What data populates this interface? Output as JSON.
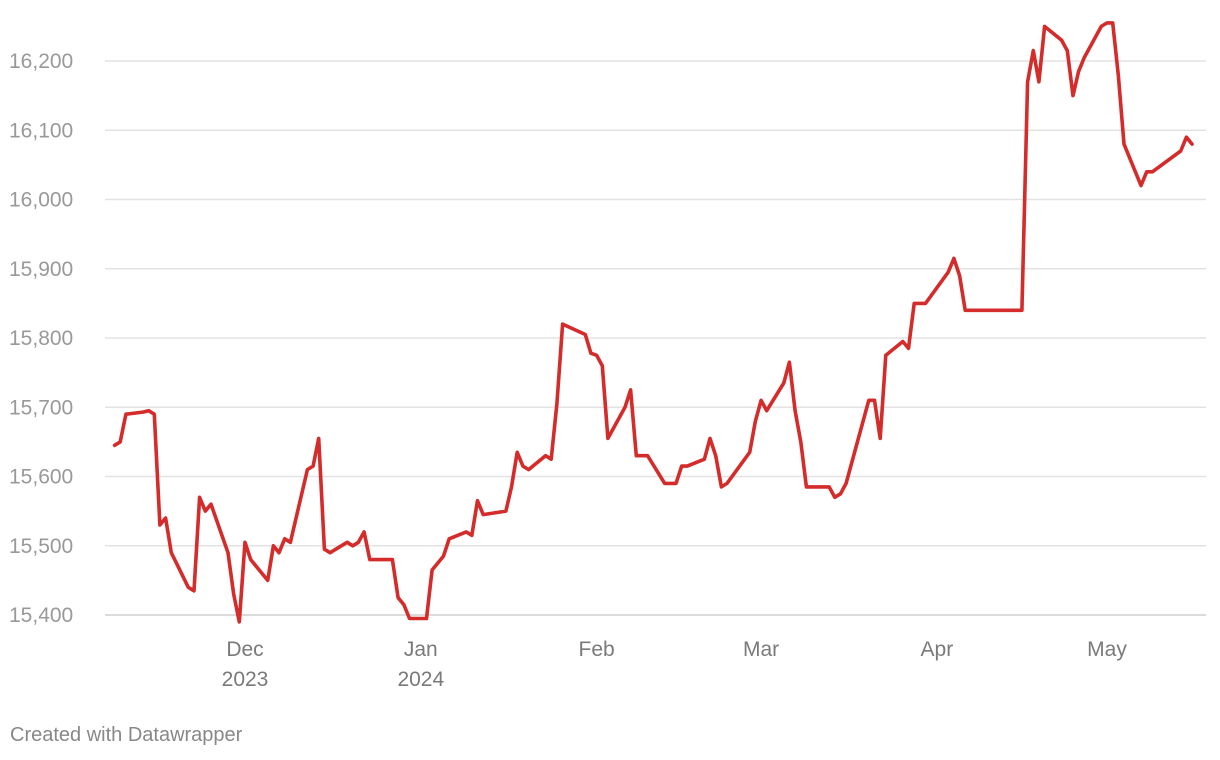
{
  "chart_data": {
    "type": "line",
    "x_range": [
      "2023-11-06",
      "2024-05-19"
    ],
    "ylim": [
      15400,
      16250
    ],
    "y_ticks": [
      {
        "value": 15400,
        "label": "15,400"
      },
      {
        "value": 15500,
        "label": "15,500"
      },
      {
        "value": 15600,
        "label": "15,600"
      },
      {
        "value": 15700,
        "label": "15,700"
      },
      {
        "value": 15800,
        "label": "15,800"
      },
      {
        "value": 15900,
        "label": "15,900"
      },
      {
        "value": 16000,
        "label": "16,000"
      },
      {
        "value": 16100,
        "label": "16,100"
      },
      {
        "value": 16200,
        "label": "16,200"
      }
    ],
    "x_ticks": [
      {
        "date": "2023-12-01",
        "label": "Dec",
        "sublabel": "2023"
      },
      {
        "date": "2024-01-01",
        "label": "Jan",
        "sublabel": "2024"
      },
      {
        "date": "2024-02-01",
        "label": "Feb",
        "sublabel": ""
      },
      {
        "date": "2024-03-01",
        "label": "Mar",
        "sublabel": ""
      },
      {
        "date": "2024-04-01",
        "label": "Apr",
        "sublabel": ""
      },
      {
        "date": "2024-05-01",
        "label": "May",
        "sublabel": ""
      }
    ],
    "grid": true,
    "series": [
      {
        "color": "#d42b2b",
        "points": [
          [
            "2023-11-08",
            15645
          ],
          [
            "2023-11-09",
            15650
          ],
          [
            "2023-11-10",
            15690
          ],
          [
            "2023-11-13",
            15693
          ],
          [
            "2023-11-14",
            15695
          ],
          [
            "2023-11-15",
            15690
          ],
          [
            "2023-11-16",
            15530
          ],
          [
            "2023-11-17",
            15540
          ],
          [
            "2023-11-18",
            15490
          ],
          [
            "2023-11-21",
            15440
          ],
          [
            "2023-11-22",
            15435
          ],
          [
            "2023-11-23",
            15570
          ],
          [
            "2023-11-24",
            15550
          ],
          [
            "2023-11-25",
            15560
          ],
          [
            "2023-11-28",
            15490
          ],
          [
            "2023-11-29",
            15430
          ],
          [
            "2023-11-30",
            15390
          ],
          [
            "2023-12-01",
            15505
          ],
          [
            "2023-12-02",
            15480
          ],
          [
            "2023-12-05",
            15450
          ],
          [
            "2023-12-06",
            15500
          ],
          [
            "2023-12-07",
            15490
          ],
          [
            "2023-12-08",
            15510
          ],
          [
            "2023-12-09",
            15505
          ],
          [
            "2023-12-12",
            15610
          ],
          [
            "2023-12-13",
            15615
          ],
          [
            "2023-12-14",
            15655
          ],
          [
            "2023-12-15",
            15495
          ],
          [
            "2023-12-16",
            15490
          ],
          [
            "2023-12-19",
            15505
          ],
          [
            "2023-12-20",
            15500
          ],
          [
            "2023-12-21",
            15505
          ],
          [
            "2023-12-22",
            15520
          ],
          [
            "2023-12-23",
            15480
          ],
          [
            "2023-12-27",
            15480
          ],
          [
            "2023-12-28",
            15425
          ],
          [
            "2023-12-29",
            15415
          ],
          [
            "2023-12-30",
            15395
          ],
          [
            "2024-01-02",
            15395
          ],
          [
            "2024-01-03",
            15465
          ],
          [
            "2024-01-05",
            15485
          ],
          [
            "2024-01-06",
            15510
          ],
          [
            "2024-01-09",
            15520
          ],
          [
            "2024-01-10",
            15515
          ],
          [
            "2024-01-11",
            15565
          ],
          [
            "2024-01-12",
            15545
          ],
          [
            "2024-01-16",
            15550
          ],
          [
            "2024-01-17",
            15585
          ],
          [
            "2024-01-18",
            15635
          ],
          [
            "2024-01-19",
            15615
          ],
          [
            "2024-01-20",
            15610
          ],
          [
            "2024-01-23",
            15630
          ],
          [
            "2024-01-24",
            15625
          ],
          [
            "2024-01-25",
            15705
          ],
          [
            "2024-01-26",
            15820
          ],
          [
            "2024-01-30",
            15805
          ],
          [
            "2024-01-31",
            15778
          ],
          [
            "2024-02-01",
            15775
          ],
          [
            "2024-02-02",
            15760
          ],
          [
            "2024-02-03",
            15655
          ],
          [
            "2024-02-06",
            15700
          ],
          [
            "2024-02-07",
            15725
          ],
          [
            "2024-02-08",
            15630
          ],
          [
            "2024-02-10",
            15630
          ],
          [
            "2024-02-13",
            15590
          ],
          [
            "2024-02-15",
            15590
          ],
          [
            "2024-02-16",
            15615
          ],
          [
            "2024-02-17",
            15615
          ],
          [
            "2024-02-20",
            15625
          ],
          [
            "2024-02-21",
            15655
          ],
          [
            "2024-02-22",
            15630
          ],
          [
            "2024-02-23",
            15585
          ],
          [
            "2024-02-24",
            15590
          ],
          [
            "2024-02-28",
            15635
          ],
          [
            "2024-02-29",
            15680
          ],
          [
            "2024-03-01",
            15710
          ],
          [
            "2024-03-02",
            15695
          ],
          [
            "2024-03-05",
            15735
          ],
          [
            "2024-03-06",
            15765
          ],
          [
            "2024-03-07",
            15695
          ],
          [
            "2024-03-08",
            15650
          ],
          [
            "2024-03-09",
            15585
          ],
          [
            "2024-03-13",
            15585
          ],
          [
            "2024-03-14",
            15570
          ],
          [
            "2024-03-15",
            15575
          ],
          [
            "2024-03-16",
            15590
          ],
          [
            "2024-03-19",
            15680
          ],
          [
            "2024-03-20",
            15710
          ],
          [
            "2024-03-21",
            15710
          ],
          [
            "2024-03-22",
            15655
          ],
          [
            "2024-03-23",
            15775
          ],
          [
            "2024-03-26",
            15795
          ],
          [
            "2024-03-27",
            15785
          ],
          [
            "2024-03-28",
            15850
          ],
          [
            "2024-03-30",
            15850
          ],
          [
            "2024-04-03",
            15895
          ],
          [
            "2024-04-04",
            15915
          ],
          [
            "2024-04-05",
            15890
          ],
          [
            "2024-04-06",
            15840
          ],
          [
            "2024-04-16",
            15840
          ],
          [
            "2024-04-17",
            16170
          ],
          [
            "2024-04-18",
            16215
          ],
          [
            "2024-04-19",
            16170
          ],
          [
            "2024-04-20",
            16250
          ],
          [
            "2024-04-23",
            16230
          ],
          [
            "2024-04-24",
            16215
          ],
          [
            "2024-04-25",
            16150
          ],
          [
            "2024-04-26",
            16185
          ],
          [
            "2024-04-27",
            16205
          ],
          [
            "2024-04-30",
            16250
          ],
          [
            "2024-05-01",
            16255
          ],
          [
            "2024-05-02",
            16255
          ],
          [
            "2024-05-03",
            16180
          ],
          [
            "2024-05-04",
            16080
          ],
          [
            "2024-05-07",
            16020
          ],
          [
            "2024-05-08",
            16040
          ],
          [
            "2024-05-09",
            16040
          ],
          [
            "2024-05-14",
            16070
          ],
          [
            "2024-05-15",
            16090
          ],
          [
            "2024-05-16",
            16080
          ]
        ]
      }
    ]
  },
  "footer": {
    "credit": "Created with Datawrapper"
  }
}
